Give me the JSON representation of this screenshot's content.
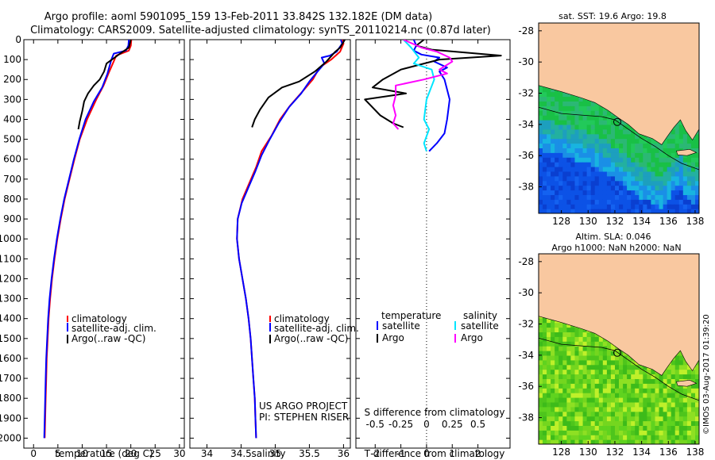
{
  "title_line1": "Argo profile: aoml 5901095_159 13-Feb-2011 33.842S 132.182E (DM data)",
  "title_line2": "Climatology: CARS2009. Satellite-adjusted climatology: synTS_20110214.nc (0.87d later)",
  "credit": "©IMOS 03-Aug-2017 01:39:20",
  "colors": {
    "climatology": "#ff0000",
    "satellite": "#0000ff",
    "argo": "#000000",
    "sal_satellite": "#00e5ff",
    "sal_argo": "#ff00ff",
    "land": "#f9c8a0"
  },
  "chart_data": [
    {
      "id": "temperature",
      "type": "line",
      "xlabel": "temperature (deg C)",
      "ylabel": "",
      "xlim": [
        -2,
        31
      ],
      "ylim": [
        2050,
        0
      ],
      "xticks": [
        0,
        5,
        10,
        15,
        20,
        25,
        30
      ],
      "yticks": [
        0,
        100,
        200,
        300,
        400,
        500,
        600,
        700,
        800,
        900,
        1000,
        1100,
        1200,
        1300,
        1400,
        1500,
        1600,
        1700,
        1800,
        1900,
        2000
      ],
      "legend": [
        "climatology",
        "satellite-adj. clim.",
        "Argo(..raw -QC)"
      ],
      "series": [
        {
          "name": "climatology",
          "color": "#ff0000",
          "points": [
            [
              20.1,
              0
            ],
            [
              20.0,
              30
            ],
            [
              19.6,
              55
            ],
            [
              17.0,
              80
            ],
            [
              16.3,
              120
            ],
            [
              15.4,
              170
            ],
            [
              14.4,
              230
            ],
            [
              12.9,
              300
            ],
            [
              11.0,
              400
            ],
            [
              9.5,
              500
            ],
            [
              8.4,
              600
            ],
            [
              7.4,
              700
            ],
            [
              6.4,
              800
            ],
            [
              5.6,
              900
            ],
            [
              4.9,
              1000
            ],
            [
              4.3,
              1100
            ],
            [
              3.8,
              1200
            ],
            [
              3.4,
              1300
            ],
            [
              3.1,
              1400
            ],
            [
              2.9,
              1500
            ],
            [
              2.7,
              1600
            ],
            [
              2.6,
              1700
            ],
            [
              2.5,
              1800
            ],
            [
              2.4,
              1900
            ],
            [
              2.3,
              2000
            ]
          ]
        },
        {
          "name": "satellite-adj. clim.",
          "color": "#0000ff",
          "points": [
            [
              19.6,
              0
            ],
            [
              19.5,
              30
            ],
            [
              19.0,
              55
            ],
            [
              16.5,
              70
            ],
            [
              16.0,
              100
            ],
            [
              15.2,
              170
            ],
            [
              14.1,
              240
            ],
            [
              12.4,
              310
            ],
            [
              10.7,
              400
            ],
            [
              9.4,
              500
            ],
            [
              8.3,
              600
            ],
            [
              7.3,
              700
            ],
            [
              6.3,
              800
            ],
            [
              5.5,
              900
            ],
            [
              4.8,
              1000
            ],
            [
              4.2,
              1100
            ],
            [
              3.7,
              1200
            ],
            [
              3.3,
              1300
            ],
            [
              3.0,
              1400
            ],
            [
              2.8,
              1500
            ],
            [
              2.6,
              1600
            ],
            [
              2.5,
              1700
            ],
            [
              2.4,
              1800
            ],
            [
              2.3,
              1900
            ],
            [
              2.2,
              2000
            ]
          ]
        },
        {
          "name": "Argo(..raw -QC)",
          "color": "#000000",
          "points": [
            [
              20.0,
              0
            ],
            [
              19.6,
              40
            ],
            [
              17.8,
              70
            ],
            [
              15.0,
              120
            ],
            [
              14.5,
              160
            ],
            [
              13.6,
              200
            ],
            [
              12.4,
              230
            ],
            [
              11.2,
              270
            ],
            [
              10.4,
              310
            ],
            [
              10.0,
              360
            ],
            [
              9.5,
              410
            ],
            [
              9.2,
              450
            ]
          ]
        }
      ]
    },
    {
      "id": "salinity",
      "type": "line",
      "xlabel": "salinity",
      "ylabel": "",
      "xlim": [
        33.75,
        36.1
      ],
      "ylim": [
        2050,
        0
      ],
      "xticks": [
        34,
        34.5,
        35,
        35.5,
        36
      ],
      "xticklabels": [
        "34",
        "34.5",
        "35",
        "35.5",
        "36"
      ],
      "legend": [
        "climatology",
        "satellite-adj. clim.",
        "Argo(..raw -QC)"
      ],
      "annotations": [
        "US ARGO PROJECT",
        "PI: STEPHEN RISER"
      ],
      "series": [
        {
          "name": "climatology",
          "color": "#ff0000",
          "points": [
            [
              35.98,
              0
            ],
            [
              36.0,
              20
            ],
            [
              35.95,
              60
            ],
            [
              35.82,
              100
            ],
            [
              35.65,
              140
            ],
            [
              35.55,
              200
            ],
            [
              35.4,
              260
            ],
            [
              35.22,
              330
            ],
            [
              35.07,
              400
            ],
            [
              34.95,
              480
            ],
            [
              34.8,
              560
            ],
            [
              34.72,
              640
            ],
            [
              34.62,
              720
            ],
            [
              34.52,
              800
            ],
            [
              34.45,
              900
            ],
            [
              34.44,
              1000
            ],
            [
              34.47,
              1100
            ],
            [
              34.52,
              1200
            ],
            [
              34.57,
              1300
            ],
            [
              34.61,
              1400
            ],
            [
              34.64,
              1500
            ],
            [
              34.66,
              1600
            ],
            [
              34.68,
              1700
            ],
            [
              34.7,
              1800
            ],
            [
              34.71,
              1900
            ],
            [
              34.72,
              2000
            ]
          ]
        },
        {
          "name": "satellite-adj. clim.",
          "color": "#0000ff",
          "points": [
            [
              35.96,
              0
            ],
            [
              35.98,
              20
            ],
            [
              35.9,
              60
            ],
            [
              35.8,
              80
            ],
            [
              35.68,
              90
            ],
            [
              35.72,
              120
            ],
            [
              35.62,
              160
            ],
            [
              35.5,
              210
            ],
            [
              35.38,
              270
            ],
            [
              35.2,
              340
            ],
            [
              35.05,
              420
            ],
            [
              34.92,
              500
            ],
            [
              34.8,
              580
            ],
            [
              34.71,
              660
            ],
            [
              34.61,
              740
            ],
            [
              34.51,
              820
            ],
            [
              34.45,
              900
            ],
            [
              34.44,
              1000
            ],
            [
              34.47,
              1100
            ],
            [
              34.52,
              1200
            ],
            [
              34.57,
              1300
            ],
            [
              34.61,
              1400
            ],
            [
              34.64,
              1500
            ],
            [
              34.66,
              1600
            ],
            [
              34.68,
              1700
            ],
            [
              34.7,
              1800
            ],
            [
              34.71,
              1900
            ],
            [
              34.72,
              2000
            ]
          ]
        },
        {
          "name": "Argo(..raw -QC)",
          "color": "#000000",
          "points": [
            [
              36.02,
              0
            ],
            [
              35.95,
              40
            ],
            [
              35.88,
              60
            ],
            [
              35.75,
              110
            ],
            [
              35.58,
              160
            ],
            [
              35.35,
              210
            ],
            [
              35.1,
              240
            ],
            [
              34.9,
              290
            ],
            [
              34.78,
              350
            ],
            [
              34.7,
              400
            ],
            [
              34.66,
              440
            ]
          ]
        }
      ]
    },
    {
      "id": "difference",
      "type": "line",
      "xlabel": "T difference from climatology",
      "x2label": "S difference from climatology",
      "ylabel": "",
      "xlim": [
        -2.75,
        3.25
      ],
      "ylim": [
        2050,
        0
      ],
      "xticks": [
        -2,
        -1,
        0,
        1,
        2
      ],
      "x2ticklabels": [
        "-0.5",
        "-0.25",
        "0",
        "0.25",
        "0.5"
      ],
      "legend_temperature": [
        "temperature",
        "satellite",
        "Argo"
      ],
      "legend_salinity": [
        "salinity",
        "satellite",
        "Argo"
      ],
      "series": [
        {
          "name": "satellite",
          "color": "#0000ff",
          "points": [
            [
              -0.5,
              0
            ],
            [
              -0.4,
              30
            ],
            [
              -0.5,
              55
            ],
            [
              -0.2,
              75
            ],
            [
              0.5,
              90
            ],
            [
              0.3,
              110
            ],
            [
              0.8,
              140
            ],
            [
              0.5,
              160
            ],
            [
              0.7,
              200
            ],
            [
              0.9,
              300
            ],
            [
              0.8,
              400
            ],
            [
              0.7,
              470
            ],
            [
              0.4,
              520
            ],
            [
              0.1,
              560
            ]
          ]
        },
        {
          "name": "Argo",
          "color": "#000000",
          "points": [
            [
              -0.1,
              0
            ],
            [
              -0.4,
              30
            ],
            [
              0.2,
              50
            ],
            [
              2.9,
              80
            ],
            [
              0.5,
              100
            ],
            [
              -1.0,
              150
            ],
            [
              -1.7,
              200
            ],
            [
              -2.1,
              240
            ],
            [
              -0.8,
              270
            ],
            [
              -2.4,
              300
            ],
            [
              -1.8,
              380
            ],
            [
              -1.3,
              420
            ],
            [
              -0.9,
              440
            ]
          ]
        },
        {
          "name": "satellite",
          "color": "#00e5ff",
          "points": [
            [
              -0.9,
              0
            ],
            [
              -0.6,
              40
            ],
            [
              -0.3,
              90
            ],
            [
              -0.5,
              120
            ],
            [
              0.2,
              150
            ],
            [
              0.3,
              200
            ],
            [
              0.0,
              300
            ],
            [
              -0.1,
              400
            ],
            [
              0.1,
              450
            ],
            [
              -0.1,
              520
            ],
            [
              0.0,
              560
            ]
          ]
        },
        {
          "name": "Argo",
          "color": "#ff00ff",
          "points": [
            [
              -0.9,
              0
            ],
            [
              -0.2,
              40
            ],
            [
              0.4,
              60
            ],
            [
              0.9,
              90
            ],
            [
              1.0,
              110
            ],
            [
              0.5,
              150
            ],
            [
              0.8,
              170
            ],
            [
              -0.1,
              200
            ],
            [
              -1.2,
              230
            ],
            [
              -1.2,
              280
            ],
            [
              -1.3,
              330
            ],
            [
              -1.2,
              380
            ],
            [
              -1.3,
              420
            ],
            [
              -1.1,
              450
            ]
          ]
        }
      ]
    },
    {
      "id": "sst_map",
      "type": "heatmap",
      "title": "sat. SST: 19.6  Argo: 19.8",
      "xlim": [
        126.3,
        138.3
      ],
      "ylim": [
        -39.7,
        -27.5
      ],
      "xticks": [
        128,
        130,
        132,
        134,
        136,
        138
      ],
      "yticks": [
        -28,
        -30,
        -32,
        -34,
        -36,
        -38
      ],
      "marker": [
        132.182,
        -33.842
      ]
    },
    {
      "id": "sla_map",
      "type": "heatmap",
      "title": "Altim. SLA: 0.046",
      "subtitle": "Argo h1000: NaN h2000: NaN",
      "xlim": [
        126.3,
        138.3
      ],
      "ylim": [
        -39.7,
        -27.5
      ],
      "xticks": [
        128,
        130,
        132,
        134,
        136,
        138
      ],
      "yticks": [
        -28,
        -30,
        -32,
        -34,
        -36,
        -38
      ],
      "marker": [
        132.182,
        -33.842
      ]
    }
  ]
}
